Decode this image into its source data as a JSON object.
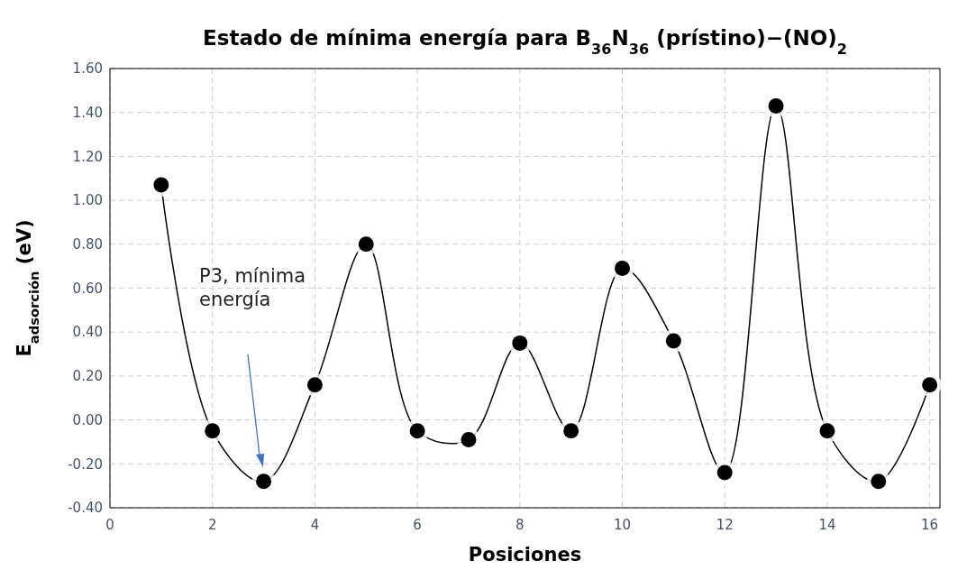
{
  "chart_data": {
    "type": "line",
    "title": "Estado de mínima energía para B$_{36}$N$_{36}$ (prístino)−(NO)$_{2}$",
    "xlabel": "Posiciones",
    "ylabel": "E$_{adsorción}$ (eV)",
    "x": [
      1,
      2,
      3,
      4,
      5,
      6,
      7,
      8,
      9,
      10,
      11,
      12,
      13,
      14,
      15,
      16
    ],
    "series": [
      {
        "color": "#000000",
        "values": [
          1.07,
          -0.05,
          -0.28,
          0.16,
          0.8,
          -0.05,
          -0.09,
          0.35,
          -0.05,
          0.69,
          0.36,
          -0.24,
          1.43,
          -0.05,
          -0.28,
          0.16
        ]
      }
    ],
    "xlim": [
      0,
      16.2
    ],
    "xticks": [
      0,
      2,
      4,
      6,
      8,
      10,
      12,
      14,
      16
    ],
    "ylim": [
      -0.4,
      1.6
    ],
    "yticks": [
      {
        "value": -0.4,
        "label": "-0.40"
      },
      {
        "value": -0.2,
        "label": "-0.20"
      },
      {
        "value": 0,
        "label": "0.00"
      },
      {
        "value": 0.2,
        "label": "0.20"
      },
      {
        "value": 0.4,
        "label": "0.40"
      },
      {
        "value": 0.6,
        "label": "0.60"
      },
      {
        "value": 0.8,
        "label": "0.80"
      },
      {
        "value": 1,
        "label": "1.00"
      },
      {
        "value": 1.2,
        "label": "1.20"
      },
      {
        "value": 1.4,
        "label": "1.40"
      },
      {
        "value": 1.6,
        "label": "1.60"
      }
    ],
    "grid": true,
    "marker": "circle",
    "line_style": "solid",
    "annotations": [
      "P3, mínima energía"
    ]
  }
}
